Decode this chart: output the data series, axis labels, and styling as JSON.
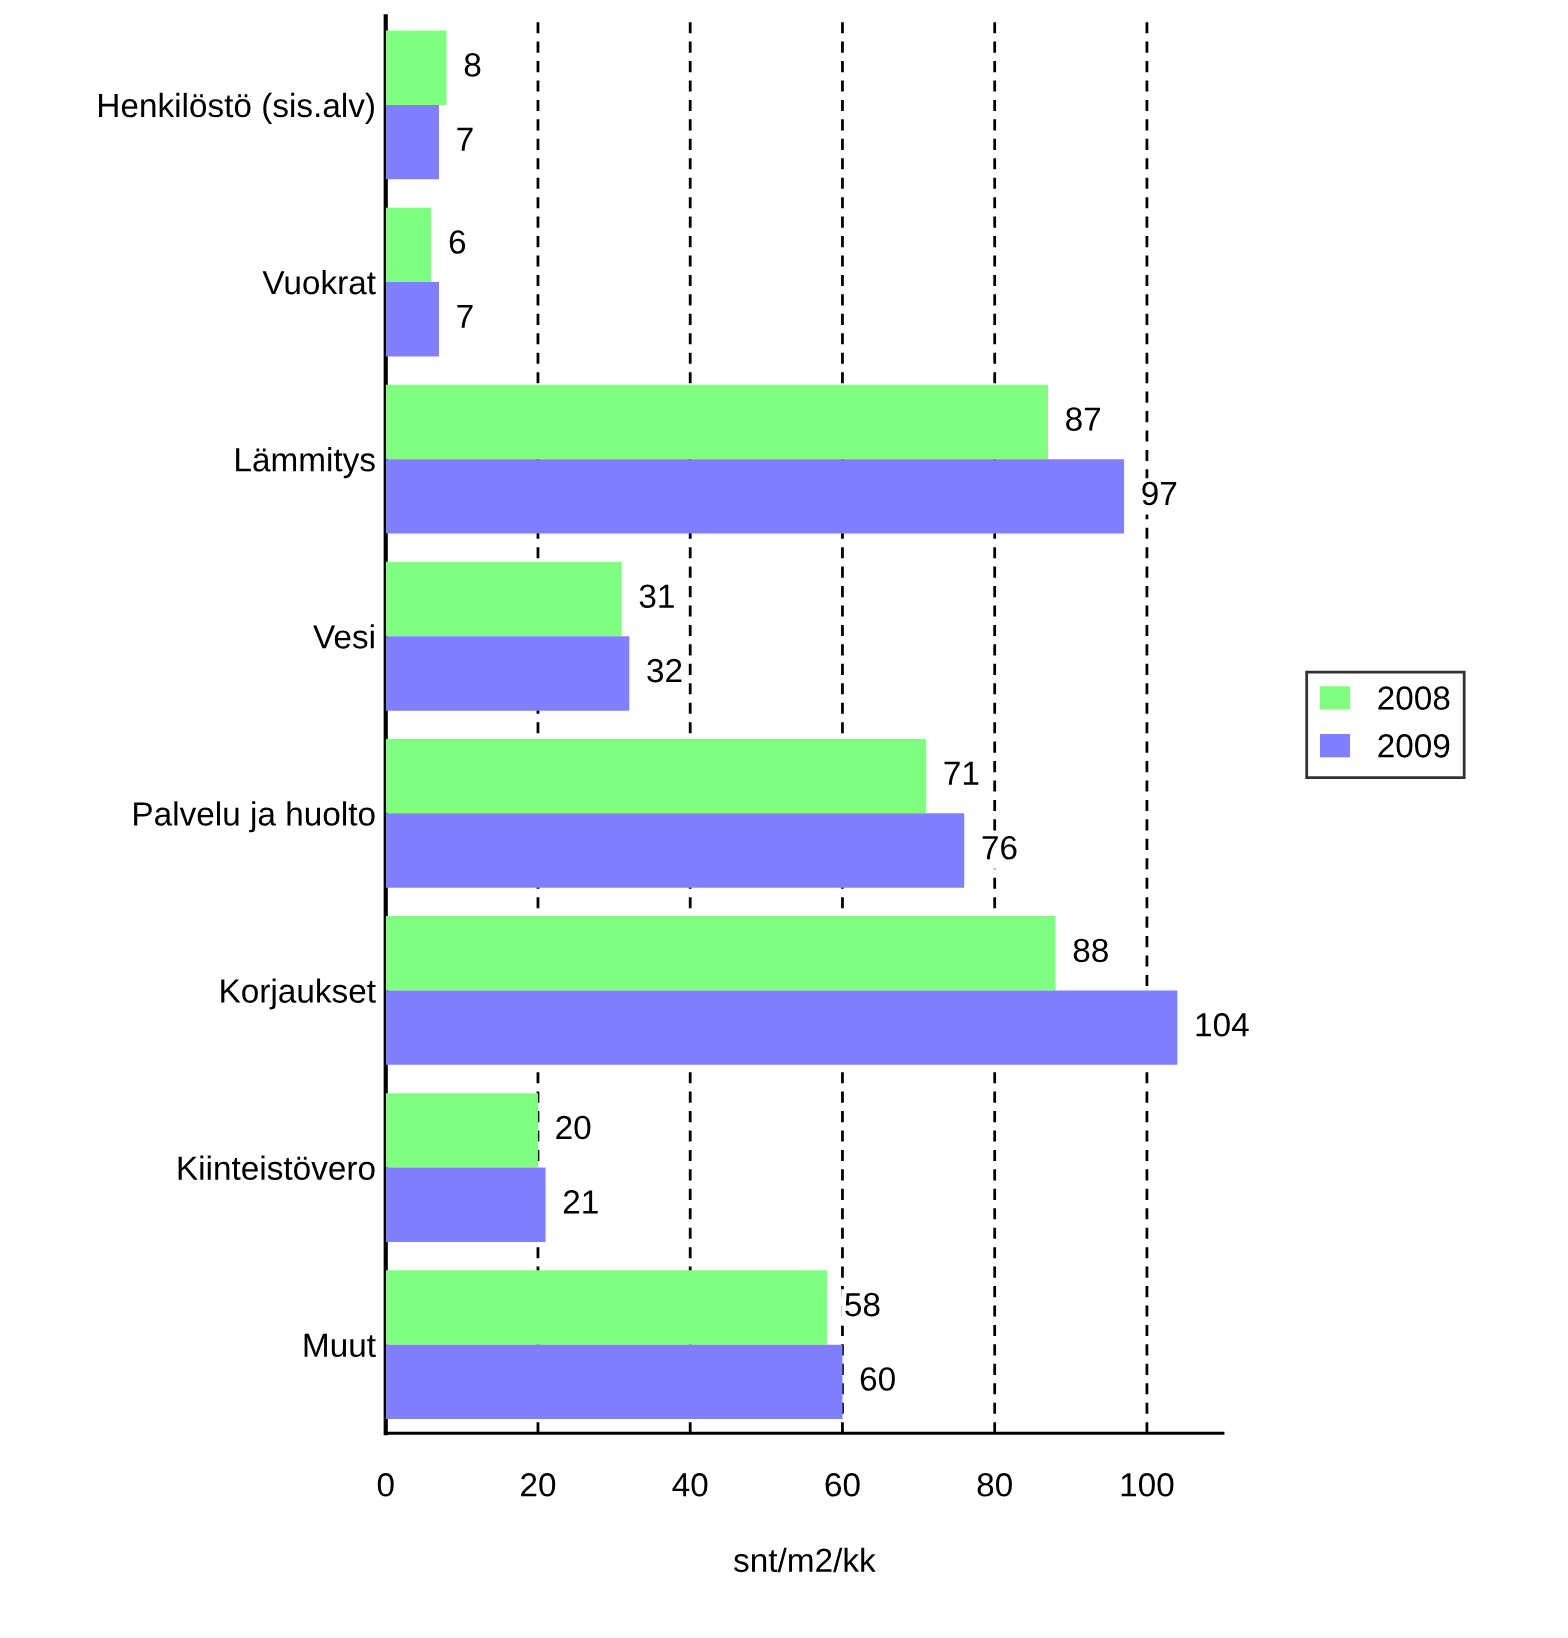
{
  "chart_data": {
    "type": "bar",
    "orientation": "horizontal",
    "xlabel": "snt/m2/kk",
    "categories": [
      "Henkilöstö (sis.alv)",
      "Vuokrat",
      "Lämmitys",
      "Vesi",
      "Palvelu ja huolto",
      "Korjaukset",
      "Kiinteistövero",
      "Muut"
    ],
    "series": [
      {
        "name": "2008",
        "color": "#80ff80",
        "values": [
          8,
          6,
          87,
          31,
          71,
          88,
          20,
          58
        ]
      },
      {
        "name": "2009",
        "color": "#8080ff",
        "values": [
          7,
          7,
          97,
          32,
          76,
          104,
          21,
          60
        ]
      }
    ],
    "xlim": [
      0,
      110
    ],
    "xticks": [
      0,
      20,
      40,
      60,
      80,
      100
    ],
    "grid": "x",
    "legend": "right",
    "data_labels": true
  }
}
